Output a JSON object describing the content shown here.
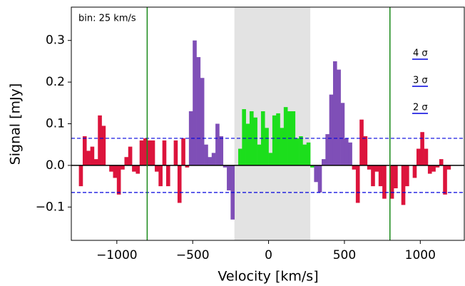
{
  "chart_data": {
    "type": "histogram",
    "annotation": "bin: 25 km/s",
    "xlabel": "Velocity [km/s]",
    "ylabel": "Signal [mJy]",
    "sigma_labels": [
      "4 σ",
      "3 σ",
      "2 σ"
    ],
    "xlim": [
      -1300,
      1290
    ],
    "ylim": [
      -0.18,
      0.38
    ],
    "xticks": [
      {
        "value": -1000,
        "label": "−1000"
      },
      {
        "value": -500,
        "label": "−500"
      },
      0,
      500,
      1000
    ],
    "yticks": [
      {
        "value": -0.1,
        "label": "−0.1"
      },
      {
        "value": 0,
        "label": "0.0"
      },
      0.1,
      0.2,
      0.3
    ],
    "bins": [
      -1250,
      -1225,
      -1200,
      -1175,
      -1150,
      -1125,
      -1100,
      -1075,
      -1050,
      -1025,
      -1000,
      -975,
      -950,
      -925,
      -900,
      -875,
      -850,
      -825,
      -800,
      -775,
      -750,
      -725,
      -700,
      -675,
      -650,
      -625,
      -600,
      -575,
      -550,
      -525,
      -500,
      -475,
      -450,
      -425,
      -400,
      -375,
      -350,
      -325,
      -300,
      -275,
      -250,
      -225,
      -200,
      -175,
      -150,
      -125,
      -100,
      -75,
      -50,
      -25,
      0,
      25,
      50,
      75,
      100,
      125,
      150,
      175,
      200,
      225,
      250,
      275,
      300,
      325,
      350,
      375,
      400,
      425,
      450,
      475,
      500,
      525,
      550,
      575,
      600,
      625,
      650,
      675,
      700,
      725,
      750,
      775,
      800,
      825,
      850,
      875,
      900,
      925,
      950,
      975,
      1000,
      1025,
      1050,
      1075,
      1100,
      1125,
      1150,
      1175,
      1200
    ],
    "values": [
      -0.05,
      0.07,
      0.035,
      0.045,
      0.015,
      0.12,
      0.095,
      0.0,
      -0.015,
      -0.03,
      -0.07,
      -0.01,
      0.02,
      0.045,
      -0.015,
      -0.02,
      0.06,
      0.065,
      0.06,
      0.06,
      -0.015,
      -0.05,
      0.06,
      -0.05,
      0.0,
      0.06,
      -0.09,
      0.065,
      -0.005,
      0.13,
      0.3,
      0.26,
      0.21,
      0.05,
      0.02,
      0.03,
      0.1,
      0.07,
      -0.005,
      -0.06,
      -0.13,
      0.0,
      0.04,
      0.135,
      0.1,
      0.13,
      0.115,
      0.05,
      0.13,
      0.09,
      0.03,
      0.12,
      0.125,
      0.09,
      0.14,
      0.13,
      0.13,
      0.065,
      0.07,
      0.05,
      0.055,
      -0.005,
      -0.04,
      -0.065,
      0.015,
      0.075,
      0.17,
      0.25,
      0.23,
      0.15,
      0.065,
      0.055,
      -0.01,
      -0.09,
      0.11,
      0.07,
      -0.01,
      -0.05,
      -0.015,
      -0.05,
      -0.08,
      0.0,
      -0.08,
      -0.055,
      0.0,
      -0.095,
      -0.05,
      0.0,
      -0.03,
      0.04,
      0.08,
      0.04,
      -0.02,
      -0.015,
      -0.005,
      0.015,
      -0.07,
      -0.01
    ],
    "colors": [
      "#dc143c",
      "#dc143c",
      "#dc143c",
      "#dc143c",
      "#dc143c",
      "#dc143c",
      "#dc143c",
      "#dc143c",
      "#dc143c",
      "#dc143c",
      "#dc143c",
      "#dc143c",
      "#dc143c",
      "#dc143c",
      "#dc143c",
      "#dc143c",
      "#dc143c",
      "#dc143c",
      "#dc143c",
      "#dc143c",
      "#dc143c",
      "#dc143c",
      "#dc143c",
      "#dc143c",
      "#dc143c",
      "#dc143c",
      "#dc143c",
      "#dc143c",
      "#dc143c",
      "#7f4fb7",
      "#7f4fb7",
      "#7f4fb7",
      "#7f4fb7",
      "#7f4fb7",
      "#7f4fb7",
      "#7f4fb7",
      "#7f4fb7",
      "#7f4fb7",
      "#7f4fb7",
      "#7f4fb7",
      "#7f4fb7",
      "#1cde1c",
      "#1cde1c",
      "#1cde1c",
      "#1cde1c",
      "#1cde1c",
      "#1cde1c",
      "#1cde1c",
      "#1cde1c",
      "#1cde1c",
      "#1cde1c",
      "#1cde1c",
      "#1cde1c",
      "#1cde1c",
      "#1cde1c",
      "#1cde1c",
      "#1cde1c",
      "#1cde1c",
      "#1cde1c",
      "#1cde1c",
      "#1cde1c",
      "#1cde1c",
      "#7f4fb7",
      "#7f4fb7",
      "#7f4fb7",
      "#7f4fb7",
      "#7f4fb7",
      "#7f4fb7",
      "#7f4fb7",
      "#7f4fb7",
      "#7f4fb7",
      "#7f4fb7",
      "#dc143c",
      "#dc143c",
      "#dc143c",
      "#dc143c",
      "#dc143c",
      "#dc143c",
      "#dc143c",
      "#dc143c",
      "#dc143c",
      "#dc143c",
      "#dc143c",
      "#dc143c",
      "#dc143c",
      "#dc143c",
      "#dc143c",
      "#dc143c",
      "#dc143c",
      "#dc143c",
      "#dc143c",
      "#dc143c",
      "#dc143c",
      "#dc143c",
      "#dc143c",
      "#dc143c",
      "#dc143c",
      "#dc143c"
    ],
    "shaded_span": [
      -225,
      275
    ],
    "vlines": [
      -800,
      800
    ],
    "hlines": [
      0.065,
      -0.065
    ]
  }
}
